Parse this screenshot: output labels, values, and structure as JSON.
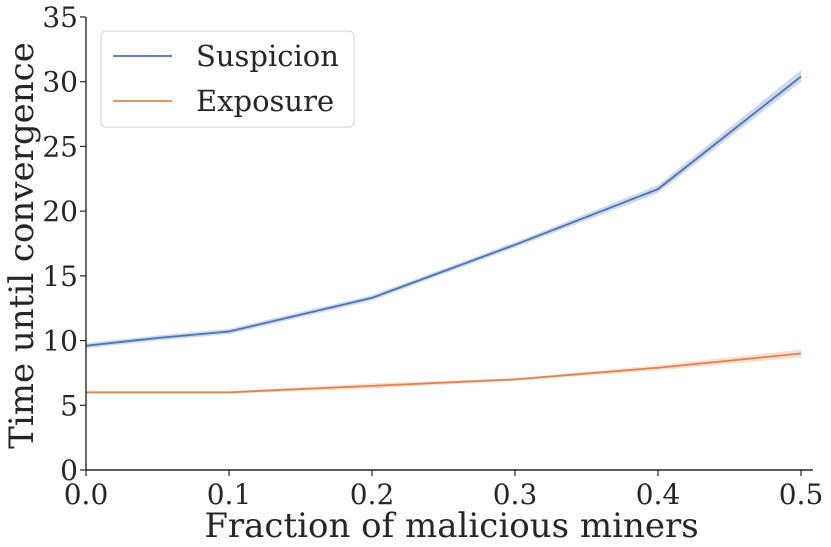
{
  "chart_data": {
    "type": "line",
    "xlabel": "Fraction of malicious miners",
    "ylabel": "Time until convergence",
    "xlim": [
      0.0,
      0.5
    ],
    "ylim": [
      0,
      35
    ],
    "xticks": [
      0.0,
      0.1,
      0.2,
      0.3,
      0.4,
      0.5
    ],
    "xtick_labels": [
      "0.0",
      "0.1",
      "0.2",
      "0.3",
      "0.4",
      "0.5"
    ],
    "yticks": [
      0,
      5,
      10,
      15,
      20,
      25,
      30,
      35
    ],
    "ytick_labels": [
      "0",
      "5",
      "10",
      "15",
      "20",
      "25",
      "30",
      "35"
    ],
    "grid": false,
    "legend_position": "top-left",
    "series": [
      {
        "name": "Suspicion",
        "color": "#4c72b0",
        "band_color": "#a1b8de",
        "x": [
          0.0,
          0.05,
          0.1,
          0.2,
          0.3,
          0.4,
          0.5
        ],
        "values": [
          9.6,
          10.2,
          10.7,
          13.3,
          17.4,
          21.7,
          30.4
        ],
        "lower": [
          9.4,
          10.0,
          10.5,
          13.1,
          17.2,
          21.4,
          30.0
        ],
        "upper": [
          9.8,
          10.4,
          10.9,
          13.5,
          17.6,
          22.0,
          30.9
        ]
      },
      {
        "name": "Exposure",
        "color": "#dd8452",
        "band_color": "#f2c4a8",
        "x": [
          0.0,
          0.1,
          0.2,
          0.3,
          0.4,
          0.5
        ],
        "values": [
          6.0,
          6.0,
          6.5,
          7.0,
          7.9,
          9.0
        ],
        "lower": [
          5.9,
          5.9,
          6.3,
          6.9,
          7.7,
          8.7
        ],
        "upper": [
          6.1,
          6.1,
          6.7,
          7.1,
          8.1,
          9.3
        ]
      }
    ]
  }
}
